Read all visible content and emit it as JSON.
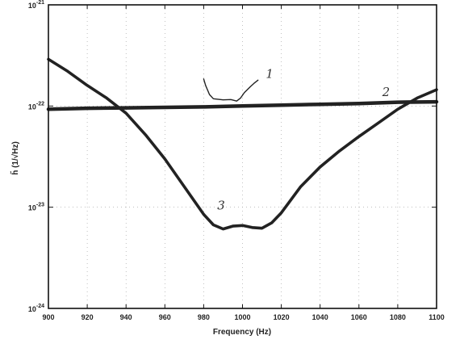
{
  "chart_data": {
    "type": "line",
    "title": "",
    "xlabel": "Frequency (Hz)",
    "ylabel": "h̃ (1/√Hz)",
    "xlim": [
      900,
      1100
    ],
    "ylim": [
      1e-24,
      1e-21
    ],
    "yscale": "log",
    "grid": true,
    "x_tick_labels": [
      "900",
      "920",
      "940",
      "960",
      "980",
      "1000",
      "1020",
      "1040",
      "1060",
      "1080",
      "1100"
    ],
    "x_tick_values": [
      900,
      920,
      940,
      960,
      980,
      1000,
      1020,
      1040,
      1060,
      1080,
      1100
    ],
    "y_ticks": [
      {
        "value": 1e-24,
        "base": "10",
        "exp": "-24"
      },
      {
        "value": 1e-23,
        "base": "10",
        "exp": "-23"
      },
      {
        "value": 1e-22,
        "base": "10",
        "exp": "-22"
      },
      {
        "value": 1e-21,
        "base": "10",
        "exp": "-21"
      }
    ],
    "series": [
      {
        "label": "1",
        "x": [
          980,
          981,
          983,
          985,
          990,
          994,
          997,
          999,
          1001,
          1004,
          1006,
          1008
        ],
        "y": [
          1.85e-22,
          1.6e-22,
          1.3e-22,
          1.18e-22,
          1.15e-22,
          1.16e-22,
          1.12e-22,
          1.2e-22,
          1.36e-22,
          1.55e-22,
          1.68e-22,
          1.8e-22
        ]
      },
      {
        "label": "2",
        "x": [
          900,
          920,
          940,
          960,
          980,
          1000,
          1020,
          1040,
          1060,
          1080,
          1100
        ],
        "y": [
          9.3e-23,
          9.5e-23,
          9.6e-23,
          9.7e-23,
          9.8e-23,
          1e-22,
          1.02e-22,
          1.04e-22,
          1.06e-22,
          1.09e-22,
          1.1e-22
        ]
      },
      {
        "label": "3",
        "x": [
          900,
          910,
          920,
          930,
          940,
          950,
          960,
          970,
          980,
          985,
          990,
          995,
          1000,
          1005,
          1010,
          1015,
          1020,
          1030,
          1040,
          1050,
          1060,
          1070,
          1080,
          1090,
          1100
        ],
        "y": [
          2.9e-22,
          2.2e-22,
          1.6e-22,
          1.2e-22,
          8.5e-23,
          5.2e-23,
          3e-23,
          1.6e-23,
          8.5e-24,
          6.7e-24,
          6.1e-24,
          6.5e-24,
          6.6e-24,
          6.3e-24,
          6.2e-24,
          7e-24,
          8.8e-24,
          1.6e-23,
          2.5e-23,
          3.6e-23,
          5e-23,
          6.8e-23,
          9.3e-23,
          1.2e-22,
          1.45e-22
        ]
      }
    ]
  }
}
